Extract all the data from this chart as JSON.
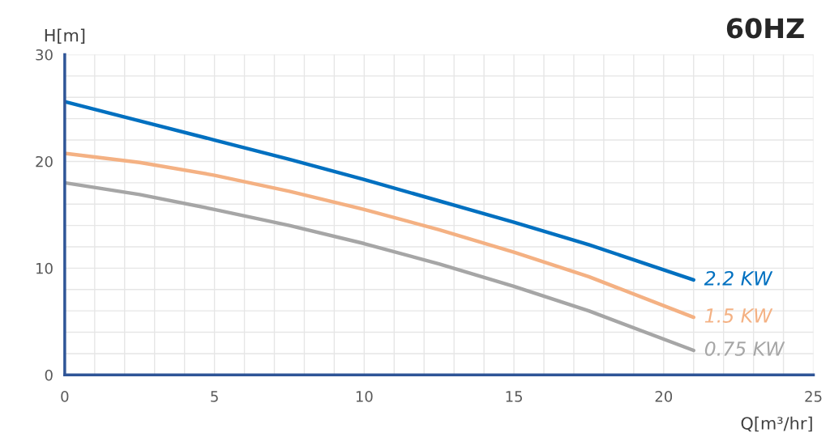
{
  "chart_data": {
    "type": "line",
    "title": "60HZ",
    "xlabel": "Q[m³/hr]",
    "ylabel": "H[m]",
    "x": [
      0,
      2.5,
      5,
      7.5,
      10,
      12.5,
      15,
      17.5,
      21
    ],
    "series": [
      {
        "name": "2.2 KW",
        "color": "#0070c0",
        "values": [
          25.6,
          23.8,
          22.0,
          20.2,
          18.3,
          16.3,
          14.3,
          12.2,
          8.9
        ]
      },
      {
        "name": "1.5 KW",
        "color": "#f4b183",
        "values": [
          20.75,
          19.9,
          18.7,
          17.2,
          15.5,
          13.6,
          11.5,
          9.2,
          5.4
        ]
      },
      {
        "name": "0.75 KW",
        "color": "#a6a6a6",
        "values": [
          18.0,
          16.9,
          15.5,
          14.0,
          12.3,
          10.4,
          8.3,
          6.0,
          2.3
        ]
      }
    ],
    "xlim": [
      0,
      25
    ],
    "ylim": [
      0,
      30
    ],
    "xticks": [
      0,
      {
        "value": 1,
        "label": null
      },
      {
        "value": 2,
        "label": null
      },
      {
        "value": 3,
        "label": null
      },
      {
        "value": 4,
        "label": null
      },
      5,
      {
        "value": 6,
        "label": null
      },
      {
        "value": 7,
        "label": null
      },
      {
        "value": 8,
        "label": null
      },
      {
        "value": 9,
        "label": null
      },
      10,
      {
        "value": 11,
        "label": null
      },
      {
        "value": 12,
        "label": null
      },
      {
        "value": 13,
        "label": null
      },
      {
        "value": 14,
        "label": null
      },
      15,
      {
        "value": 16,
        "label": null
      },
      {
        "value": 17,
        "label": null
      },
      {
        "value": 18,
        "label": null
      },
      {
        "value": 19,
        "label": null
      },
      20,
      {
        "value": 21,
        "label": null
      },
      {
        "value": 22,
        "label": null
      },
      {
        "value": 23,
        "label": null
      },
      {
        "value": 24,
        "label": null
      },
      25
    ],
    "yticks": [
      0,
      {
        "value": 2,
        "label": null
      },
      {
        "value": 4,
        "label": null
      },
      {
        "value": 6,
        "label": null
      },
      {
        "value": 8,
        "label": null
      },
      10,
      {
        "value": 12,
        "label": null
      },
      {
        "value": 14,
        "label": null
      },
      {
        "value": 16,
        "label": null
      },
      {
        "value": 18,
        "label": null
      },
      20,
      {
        "value": 22,
        "label": null
      },
      {
        "value": 24,
        "label": null
      },
      {
        "value": 26,
        "label": null
      },
      {
        "value": 28,
        "label": null
      },
      30
    ],
    "grid": true,
    "marker": "none",
    "line_style": "solid",
    "legend": false
  }
}
